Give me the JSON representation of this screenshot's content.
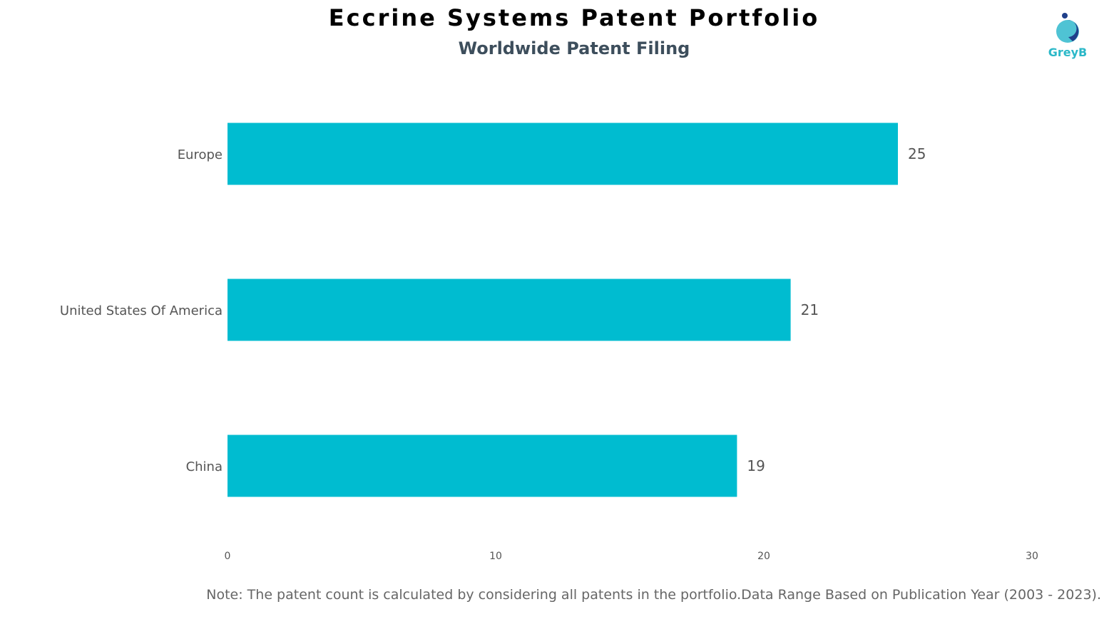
{
  "title": "Eccrine Systems Patent Portfolio",
  "subtitle": "Worldwide Patent Filing",
  "logo": {
    "text": "GreyB",
    "icon": "greyb-logo-icon",
    "color": "#2bb8c8"
  },
  "note": "Note: The patent count is calculated by considering all patents in the portfolio.Data Range Based on Publication Year (2003 - 2023).",
  "chart_data": {
    "type": "bar",
    "orientation": "horizontal",
    "title": "Eccrine Systems Patent Portfolio",
    "subtitle": "Worldwide Patent Filing",
    "categories": [
      "Europe",
      "United States Of America",
      "China"
    ],
    "values": [
      25,
      21,
      19
    ],
    "xlim": [
      0,
      30
    ],
    "xticks": [
      0,
      10,
      20,
      30
    ],
    "xlabel": "",
    "ylabel": "",
    "grid": false,
    "legend": "none",
    "data_labels": true,
    "bar_color": "#00bcd0"
  }
}
